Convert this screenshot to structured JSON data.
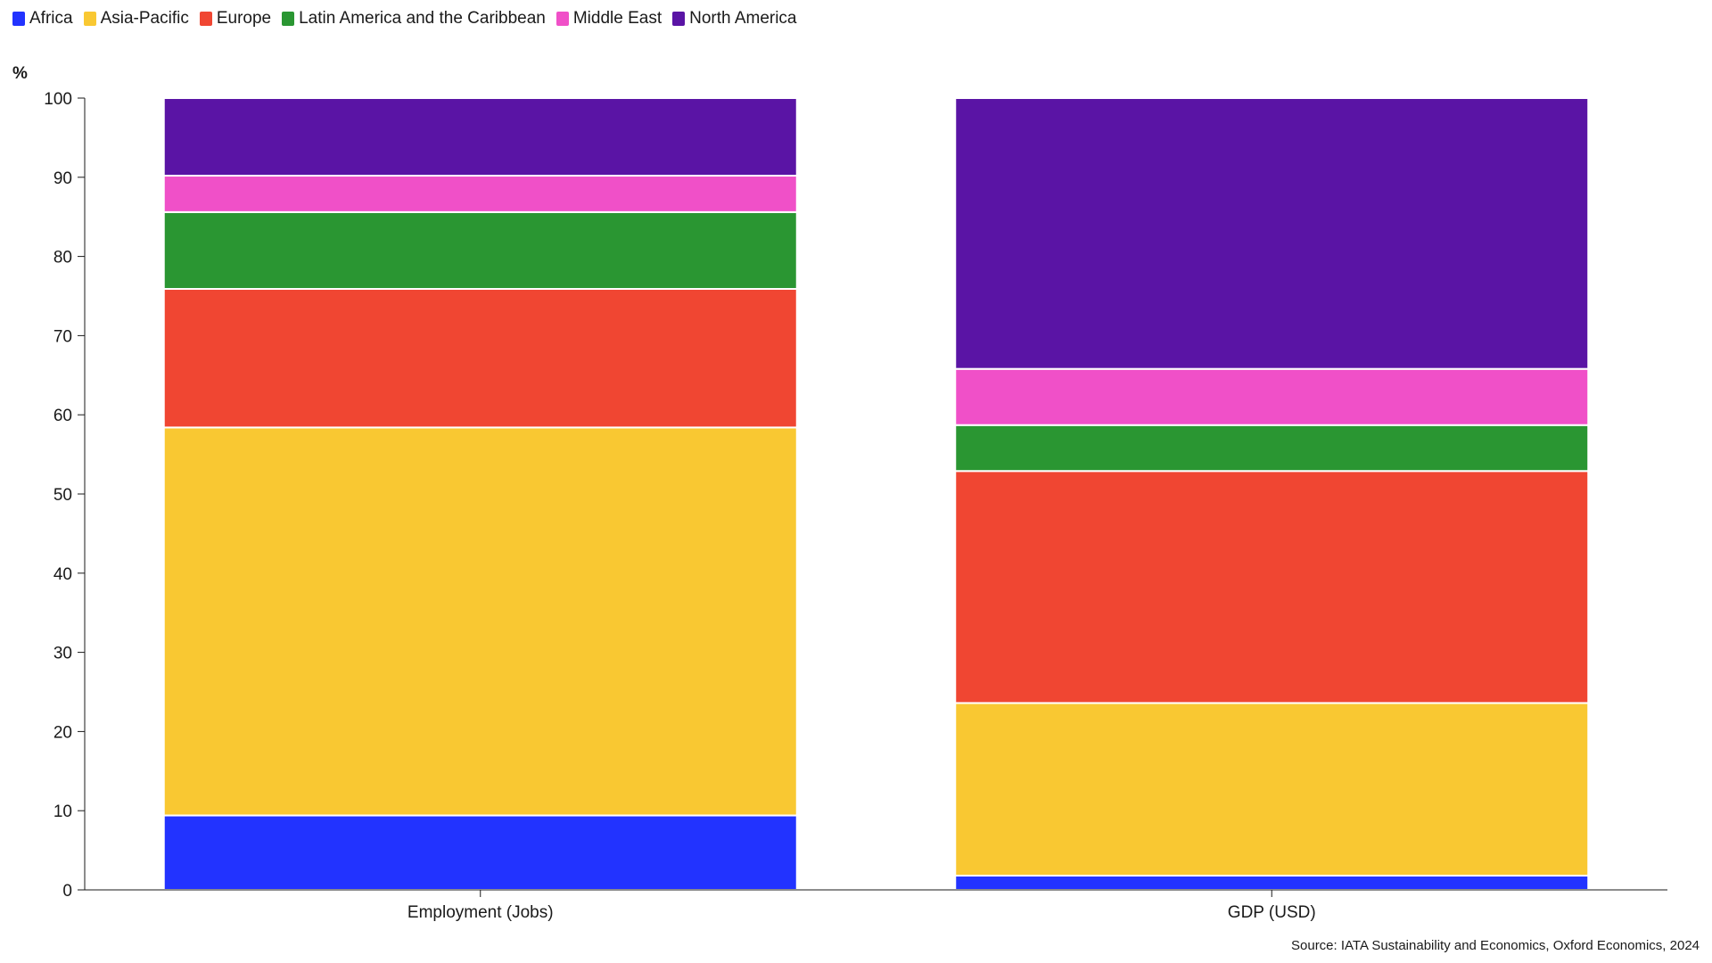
{
  "chart_data": {
    "type": "bar",
    "stacked": true,
    "categories": [
      "Employment (Jobs)",
      "GDP (USD)"
    ],
    "series": [
      {
        "name": "Africa",
        "color": "#2233ff",
        "values": [
          9.4,
          1.8
        ]
      },
      {
        "name": "Asia-Pacific",
        "color": "#f9c832",
        "values": [
          49.0,
          21.8
        ]
      },
      {
        "name": "Europe",
        "color": "#f04632",
        "values": [
          17.5,
          29.3
        ]
      },
      {
        "name": "Latin America and the Caribbean",
        "color": "#2a9632",
        "values": [
          9.7,
          5.8
        ]
      },
      {
        "name": "Middle East",
        "color": "#f050c8",
        "values": [
          4.6,
          7.1
        ]
      },
      {
        "name": "North America",
        "color": "#5a14a5",
        "values": [
          9.8,
          34.2
        ]
      }
    ],
    "title": "",
    "xlabel": "",
    "ylabel": "%",
    "ylim": [
      0,
      100
    ],
    "yticks": [
      0,
      10,
      20,
      30,
      40,
      50,
      60,
      70,
      80,
      90,
      100
    ],
    "grid": false,
    "legend_position": "top-left",
    "source": "Source: IATA Sustainability and Economics, Oxford Economics, 2024"
  }
}
